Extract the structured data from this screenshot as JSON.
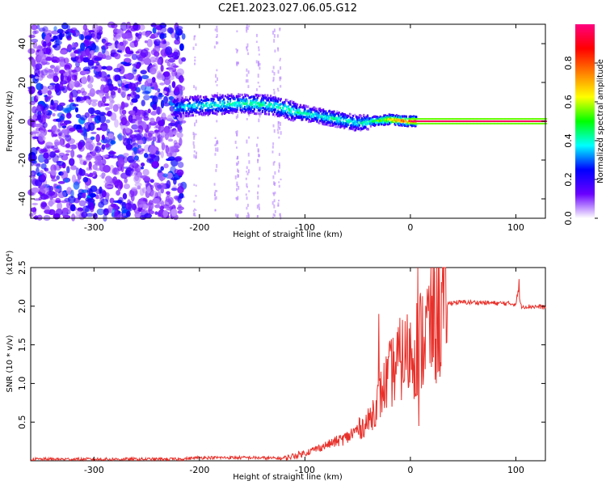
{
  "title": "C2E1.2023.027.06.05.G12",
  "chart_data": [
    {
      "type": "heatmap",
      "xlabel": "Height of straight line (km)",
      "ylabel": "Frequency (Hz)",
      "xlim": [
        -360,
        128
      ],
      "ylim": [
        -50,
        50
      ],
      "xticks": [
        -300,
        -200,
        -100,
        0,
        100
      ],
      "yticks": [
        -40,
        -20,
        0,
        20,
        40
      ],
      "colorbar": {
        "label": "Normalized spectral amplitude",
        "range": [
          0.0,
          1.0
        ],
        "ticks": [
          0.0,
          0.2,
          0.4,
          0.6,
          0.8
        ],
        "tick_labels": [
          "0.0",
          "0.2",
          "0.4",
          "0.6",
          "0.8"
        ],
        "colormap": [
          "#ffffff",
          "#6a00ff",
          "#0000ff",
          "#00ffff",
          "#00ff00",
          "#ffff00",
          "#ff7f00",
          "#ff0000",
          "#ff0080"
        ]
      },
      "ridge": [
        [
          -225,
          7
        ],
        [
          -200,
          8
        ],
        [
          -170,
          9
        ],
        [
          -150,
          9
        ],
        [
          -130,
          8
        ],
        [
          -110,
          5
        ],
        [
          -90,
          3
        ],
        [
          -70,
          1
        ],
        [
          -50,
          -1
        ],
        [
          -35,
          0
        ],
        [
          -20,
          1
        ],
        [
          -5,
          0
        ],
        [
          128,
          0
        ]
      ],
      "ridge_amplitude": [
        0.35,
        0.4,
        0.42,
        0.45,
        0.42,
        0.45,
        0.4,
        0.45,
        0.4,
        0.5,
        0.7,
        0.85,
        0.95
      ],
      "noise_region_km": [
        -360,
        -220
      ]
    },
    {
      "type": "line",
      "xlabel": "Height of straight line (km)",
      "ylabel": "SNR (10 * v/v)",
      "y_multiplier": "(x10⁴)",
      "xlim": [
        -360,
        128
      ],
      "ylim": [
        0,
        2.5
      ],
      "xticks": [
        -300,
        -200,
        -100,
        0,
        100
      ],
      "yticks": [
        0.5,
        1.0,
        1.5,
        2.0,
        2.5
      ],
      "ytick_labels": [
        "0.5",
        "1.0",
        "1.5",
        "2.0",
        "2.5"
      ],
      "color": "#e8302a",
      "series": [
        {
          "x": [
            -360,
            -300,
            -220,
            -200,
            -150,
            -120,
            -100,
            -80,
            -60,
            -40,
            -30,
            -20,
            -10,
            0,
            10,
            20,
            30,
            40,
            60,
            80,
            100,
            102,
            105,
            128
          ],
          "y": [
            0.02,
            0.02,
            0.02,
            0.04,
            0.04,
            0.03,
            0.1,
            0.2,
            0.3,
            0.5,
            0.8,
            1.1,
            1.3,
            1.4,
            1.55,
            1.8,
            2.0,
            2.05,
            2.05,
            2.04,
            2.03,
            2.2,
            2.0,
            1.99
          ]
        }
      ],
      "spikes": [
        [
          -30,
          1.9
        ],
        [
          7,
          2.5
        ],
        [
          8,
          0.45
        ],
        [
          103,
          2.35
        ]
      ]
    }
  ]
}
